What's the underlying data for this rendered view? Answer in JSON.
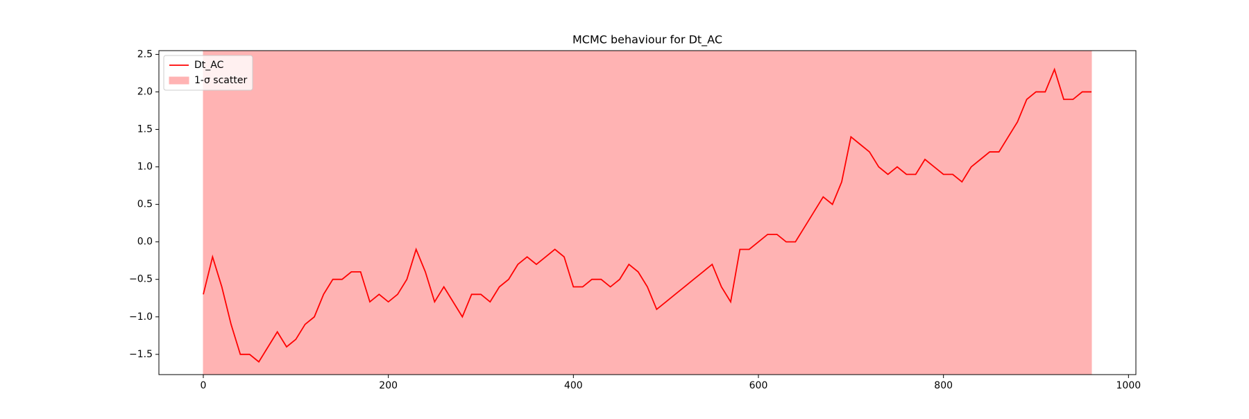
{
  "chart_data": {
    "type": "line",
    "title": "MCMC behaviour for Dt_AC",
    "x": [
      0,
      10,
      20,
      30,
      40,
      50,
      60,
      70,
      80,
      90,
      100,
      110,
      120,
      130,
      140,
      150,
      160,
      170,
      180,
      190,
      200,
      210,
      220,
      230,
      240,
      250,
      260,
      270,
      280,
      290,
      300,
      310,
      320,
      330,
      340,
      350,
      360,
      370,
      380,
      390,
      400,
      410,
      420,
      430,
      440,
      450,
      460,
      470,
      480,
      490,
      500,
      510,
      520,
      530,
      540,
      550,
      560,
      570,
      580,
      590,
      600,
      610,
      620,
      630,
      640,
      650,
      660,
      670,
      680,
      690,
      700,
      710,
      720,
      730,
      740,
      750,
      760,
      770,
      780,
      790,
      800,
      810,
      820,
      830,
      840,
      850,
      860,
      870,
      880,
      890,
      900,
      910,
      920,
      930,
      940,
      950,
      960
    ],
    "series": [
      {
        "name": "Dt_AC",
        "color": "#ff0000",
        "values": [
          -0.7,
          -0.2,
          -0.6,
          -1.1,
          -1.5,
          -1.5,
          -1.6,
          -1.4,
          -1.2,
          -1.4,
          -1.3,
          -1.1,
          -1.0,
          -0.7,
          -0.5,
          -0.5,
          -0.4,
          -0.4,
          -0.8,
          -0.7,
          -0.8,
          -0.7,
          -0.5,
          -0.1,
          -0.4,
          -0.8,
          -0.6,
          -0.8,
          -1.0,
          -0.7,
          -0.7,
          -0.8,
          -0.6,
          -0.5,
          -0.3,
          -0.2,
          -0.3,
          -0.2,
          -0.1,
          -0.2,
          -0.6,
          -0.6,
          -0.5,
          -0.5,
          -0.6,
          -0.5,
          -0.3,
          -0.4,
          -0.6,
          -0.9,
          -0.8,
          -0.7,
          -0.6,
          -0.5,
          -0.4,
          -0.3,
          -0.6,
          -0.8,
          -0.1,
          -0.1,
          0.0,
          0.1,
          0.1,
          0.0,
          0.0,
          0.2,
          0.4,
          0.6,
          0.5,
          0.8,
          1.4,
          1.3,
          1.2,
          1.0,
          0.9,
          1.0,
          0.9,
          0.9,
          1.1,
          1.0,
          0.9,
          0.9,
          0.8,
          1.0,
          1.1,
          1.2,
          1.2,
          1.4,
          1.6,
          1.9,
          2.0,
          2.0,
          2.3,
          1.9,
          1.9,
          2.0,
          2.0
        ]
      }
    ],
    "band": {
      "name": "1-σ scatter",
      "color": "#ffb3b3",
      "x": [
        0,
        960
      ],
      "lower": [
        -1.77,
        -1.77
      ],
      "upper": [
        2.55,
        2.55
      ]
    },
    "xlim": [
      -48,
      1008
    ],
    "xticks": [
      0,
      200,
      400,
      600,
      800,
      1000
    ],
    "ylim": [
      -1.77,
      2.55
    ],
    "yticks": [
      {
        "value": -1.5,
        "label": "−1.5"
      },
      {
        "value": -1.0,
        "label": "−1.0"
      },
      {
        "value": -0.5,
        "label": "−0.5"
      },
      {
        "value": 0.0,
        "label": "0.0"
      },
      {
        "value": 0.5,
        "label": "0.5"
      },
      {
        "value": 1.0,
        "label": "1.0"
      },
      {
        "value": 1.5,
        "label": "1.5"
      },
      {
        "value": 2.0,
        "label": "2.0"
      },
      {
        "value": 2.5,
        "label": "2.5"
      }
    ],
    "legend": "upper left"
  }
}
